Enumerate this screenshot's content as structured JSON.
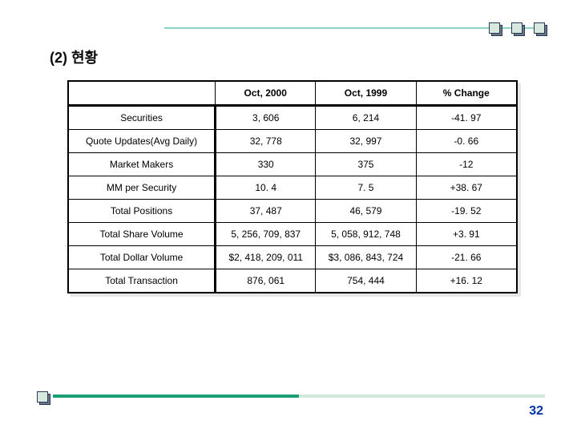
{
  "title": "(2) 현황",
  "page_number": "32",
  "deco": {
    "top_square_colors": [
      "#d7e8de",
      "#d7e8de",
      "#d7e8de"
    ],
    "bottom_square_color": "#d7e8de"
  },
  "table": {
    "columns": [
      "",
      "Oct, 2000",
      "Oct, 1999",
      "% Change"
    ],
    "col_widths": [
      "184px",
      "126px",
      "126px",
      "126px"
    ],
    "rows": [
      [
        "Securities",
        "3, 606",
        "6, 214",
        "-41. 97"
      ],
      [
        "Quote Updates(Avg Daily)",
        "32, 778",
        "32, 997",
        "-0. 66"
      ],
      [
        "Market Makers",
        "330",
        "375",
        "-12"
      ],
      [
        "MM per Security",
        "10. 4",
        "7. 5",
        "+38. 67"
      ],
      [
        "Total Positions",
        "37, 487",
        "46, 579",
        "-19. 52"
      ],
      [
        "Total Share Volume",
        "5, 256, 709, 837",
        "5, 058, 912, 748",
        "+3. 91"
      ],
      [
        "Total Dollar Volume",
        "$2, 418, 209, 011",
        "$3, 086, 843, 724",
        "-21. 66"
      ],
      [
        "Total Transaction",
        "876, 061",
        "754, 444",
        "+16. 12"
      ]
    ]
  }
}
